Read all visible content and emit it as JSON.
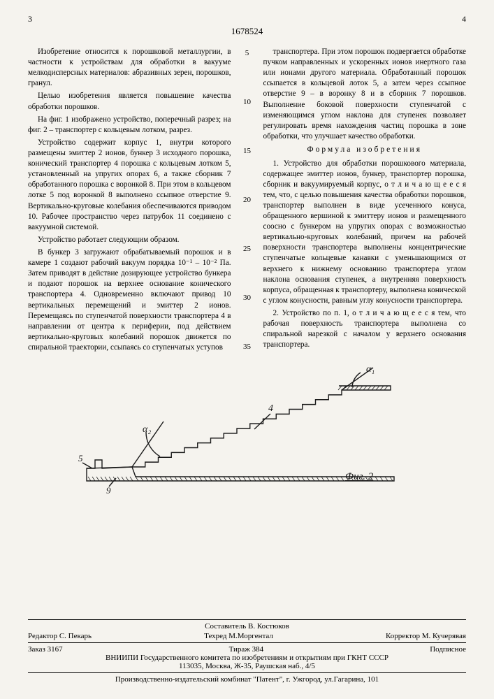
{
  "page_left": "3",
  "page_right": "4",
  "doc_number": "1678524",
  "line_markers": [
    "5",
    "10",
    "15",
    "20",
    "25",
    "30",
    "35"
  ],
  "left_col": {
    "p1": "Изобретение относится к порошковой металлургии, в частности к устройствам для обработки в вакууме мелкодисперсных материалов: абразивных зерен, порошков, гранул.",
    "p2": "Целью изобретения является повышение качества обработки порошков.",
    "p3": "На фиг. 1 изображено устройство, поперечный разрез; на фиг. 2 – транспортер с кольцевым лотком, разрез.",
    "p4": "Устройство содержит корпус 1, внутри которого размещены эмиттер 2 ионов, бункер 3 исходного порошка, конический транспортер 4 порошка с кольцевым лотком 5, установленный на упругих опорах 6, а также сборник 7 обработанного порошка с воронкой 8. При этом в кольцевом лотке 5 под воронкой 8 выполнено ссыпное отверстие 9. Вертикально-круговые колебания обеспечиваются приводом 10. Рабочее пространство через патрубок 11 соединено с вакуумной системой.",
    "p5": "Устройство работает следующим образом.",
    "p6": "В бункер 3 загружают обрабатываемый порошок и в камере 1 создают рабочий вакуум порядка 10⁻¹ – 10⁻² Па. Затем приводят в действие дозирующее устройство бункера и подают порошок на верхнее основание конического транспортера 4. Одновременно включают привод 10 вертикальных перемещений и эмиттер 2 ионов. Перемещаясь по ступенчатой поверхности транспортера 4 в направлении от центра к периферии, под действием вертикально-круговых колебаний порошок движется по спиральной траектории, ссыпаясь со ступенчатых уступов"
  },
  "right_col": {
    "p1": "транспортера. При этом порошок подвергается обработке пучком направленных и ускоренных ионов инертного газа или ионами другого материала. Обработанный порошок ссыпается в кольцевой лоток 5, а затем через ссыпное отверстие 9 – в воронку 8 и в сборник 7 порошков. Выполнение боковой поверхности ступенчатой с изменяющимся углом наклона для ступенек позволяет регулировать время нахождения частиц порошка в зоне обработки, что улучшает качество обработки.",
    "formula_title": "Формула изобретения",
    "p2": "1. Устройство для обработки порошкового материала, содержащее эмиттер ионов, бункер, транспортер порошка, сборник и вакуумируемый корпус, о т л и ч а ю щ е е с я  тем, что, с целью повышения качества обработки порошков, транспортер выполнен в виде усеченного конуса, обращенного вершиной к эмиттеру ионов и размещенного соосно с бункером на упругих опорах с возможностью вертикально-круговых колебаний, причем на рабочей поверхности транспортера выполнены концентрические ступенчатые кольцевые канавки с уменьшающимся от верхнего к нижнему основанию транспортера углом наклона основания ступенек, а внутренняя поверхность корпуса, обращенная к транспортеру, выполнена конической с углом конусности, равным углу конусности транспортера.",
    "p3": "2. Устройство по п. 1, о т л и ч а ю щ е е с я  тем, что рабочая поверхность транспортера выполнена со спиральной нарезкой с началом у верхнего основания транспортера."
  },
  "figure": {
    "alpha1": "α₁",
    "alpha2": "α₂",
    "label5": "5",
    "label9": "9",
    "label4": "4",
    "caption": "Фиг. 2",
    "stroke": "#1a1a1a",
    "hatch": "#1a1a1a",
    "steps": 16
  },
  "footer": {
    "composer_label": "Составитель",
    "composer": "В. Костюков",
    "editor_label": "Редактор",
    "editor": "С. Пекарь",
    "techred_label": "Техред",
    "techred": "М.Моргентал",
    "corrector_label": "Корректор",
    "corrector": "М. Кучерявая",
    "order_label": "Заказ",
    "order": "3167",
    "tirazh_label": "Тираж",
    "tirazh": "384",
    "subscription": "Подписное",
    "org": "ВНИИПИ Государственного комитета по изобретениям и открытиям при ГКНТ СССР",
    "address": "113035, Москва, Ж-35, Раушская наб., 4/5",
    "print": "Производственно-издательский комбинат \"Патент\", г. Ужгород, ул.Гагарина, 101"
  }
}
